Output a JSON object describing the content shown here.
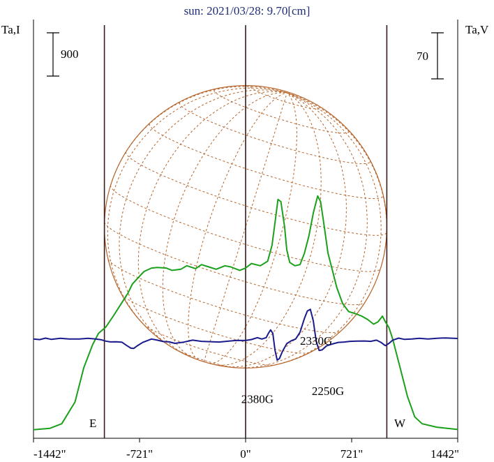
{
  "chart_data": {
    "type": "line",
    "title": "sun: 2021/03/28: 9.70[cm]",
    "left_axis_label": "Ta,I",
    "right_axis_label": "Ta,V",
    "left_scale_bar": "900",
    "right_scale_bar": "70",
    "x_ticks": [
      {
        "value": -1442,
        "label": "-1442\""
      },
      {
        "value": -721,
        "label": "-721\""
      },
      {
        "value": 0,
        "label": "0\""
      },
      {
        "value": 721,
        "label": "721\""
      },
      {
        "value": 1442,
        "label": "1442\""
      }
    ],
    "xlim": [
      -1442,
      1442
    ],
    "limb_lines": [
      -960,
      0,
      960
    ],
    "limb_labels": {
      "east": "E",
      "west": "W"
    },
    "annotations": [
      {
        "text": "2330G",
        "x": 480,
        "y": 0.78
      },
      {
        "text": "2380G",
        "x": 80,
        "y": 0.27
      },
      {
        "text": "2250G",
        "x": 560,
        "y": 0.34
      }
    ],
    "colors": {
      "intensity": "#1aa01a",
      "polarization": "#1a1a8c",
      "grid": "#b5642a",
      "limb": "#3a1a1a",
      "title": "#1f2c7a"
    },
    "series": [
      {
        "name": "Ta,I",
        "color": "#1aa01a",
        "points": [
          [
            -1442,
            0.008
          ],
          [
            -1330,
            0.02
          ],
          [
            -1250,
            0.06
          ],
          [
            -1160,
            0.25
          ],
          [
            -1100,
            0.55
          ],
          [
            -1040,
            0.75
          ],
          [
            -1000,
            0.85
          ],
          [
            -950,
            0.905
          ],
          [
            -900,
            1.0
          ],
          [
            -850,
            1.1
          ],
          [
            -800,
            1.2
          ],
          [
            -770,
            1.28
          ],
          [
            -720,
            1.35
          ],
          [
            -690,
            1.39
          ],
          [
            -640,
            1.42
          ],
          [
            -600,
            1.425
          ],
          [
            -540,
            1.42
          ],
          [
            -500,
            1.4
          ],
          [
            -440,
            1.41
          ],
          [
            -400,
            1.44
          ],
          [
            -340,
            1.415
          ],
          [
            -300,
            1.45
          ],
          [
            -250,
            1.43
          ],
          [
            -200,
            1.41
          ],
          [
            -140,
            1.44
          ],
          [
            -100,
            1.43
          ],
          [
            -40,
            1.4
          ],
          [
            0,
            1.42
          ],
          [
            40,
            1.46
          ],
          [
            100,
            1.44
          ],
          [
            150,
            1.48
          ],
          [
            180,
            1.62
          ],
          [
            200,
            1.82
          ],
          [
            220,
            2.02
          ],
          [
            240,
            2.0
          ],
          [
            265,
            1.78
          ],
          [
            280,
            1.58
          ],
          [
            300,
            1.47
          ],
          [
            335,
            1.44
          ],
          [
            370,
            1.45
          ],
          [
            400,
            1.55
          ],
          [
            430,
            1.7
          ],
          [
            460,
            1.9
          ],
          [
            490,
            2.05
          ],
          [
            510,
            2.0
          ],
          [
            535,
            1.78
          ],
          [
            560,
            1.55
          ],
          [
            590,
            1.4
          ],
          [
            620,
            1.25
          ],
          [
            660,
            1.11
          ],
          [
            700,
            1.04
          ],
          [
            750,
            1.02
          ],
          [
            790,
            1.0
          ],
          [
            830,
            0.97
          ],
          [
            870,
            0.93
          ],
          [
            900,
            0.95
          ],
          [
            930,
            1.0
          ],
          [
            950,
            0.95
          ],
          [
            975,
            0.9
          ],
          [
            1000,
            0.8
          ],
          [
            1050,
            0.55
          ],
          [
            1100,
            0.3
          ],
          [
            1150,
            0.12
          ],
          [
            1200,
            0.06
          ],
          [
            1300,
            0.03
          ],
          [
            1442,
            0.01
          ]
        ]
      },
      {
        "name": "Ta,V",
        "color": "#1a1a8c",
        "points": [
          [
            -1442,
            0.8
          ],
          [
            -1400,
            0.795
          ],
          [
            -1360,
            0.808
          ],
          [
            -1320,
            0.797
          ],
          [
            -1260,
            0.807
          ],
          [
            -1200,
            0.8
          ],
          [
            -1130,
            0.8
          ],
          [
            -1070,
            0.806
          ],
          [
            -1020,
            0.8
          ],
          [
            -980,
            0.793
          ],
          [
            -950,
            0.782
          ],
          [
            -920,
            0.775
          ],
          [
            -880,
            0.776
          ],
          [
            -840,
            0.772
          ],
          [
            -810,
            0.745
          ],
          [
            -780,
            0.72
          ],
          [
            -760,
            0.718
          ],
          [
            -740,
            0.738
          ],
          [
            -700,
            0.77
          ],
          [
            -640,
            0.8
          ],
          [
            -600,
            0.79
          ],
          [
            -560,
            0.778
          ],
          [
            -520,
            0.775
          ],
          [
            -480,
            0.762
          ],
          [
            -420,
            0.773
          ],
          [
            -360,
            0.79
          ],
          [
            -300,
            0.78
          ],
          [
            -240,
            0.777
          ],
          [
            -180,
            0.774
          ],
          [
            -120,
            0.781
          ],
          [
            -60,
            0.788
          ],
          [
            0,
            0.787
          ],
          [
            40,
            0.796
          ],
          [
            80,
            0.812
          ],
          [
            110,
            0.8
          ],
          [
            140,
            0.812
          ],
          [
            155,
            0.85
          ],
          [
            170,
            0.88
          ],
          [
            185,
            0.85
          ],
          [
            200,
            0.7
          ],
          [
            215,
            0.615
          ],
          [
            230,
            0.63
          ],
          [
            250,
            0.69
          ],
          [
            280,
            0.76
          ],
          [
            310,
            0.785
          ],
          [
            340,
            0.8
          ],
          [
            370,
            0.86
          ],
          [
            400,
            0.98
          ],
          [
            420,
            1.045
          ],
          [
            440,
            1.06
          ],
          [
            460,
            0.96
          ],
          [
            480,
            0.78
          ],
          [
            500,
            0.7
          ],
          [
            520,
            0.705
          ],
          [
            550,
            0.74
          ],
          [
            590,
            0.757
          ],
          [
            630,
            0.771
          ],
          [
            670,
            0.774
          ],
          [
            710,
            0.78
          ],
          [
            760,
            0.782
          ],
          [
            810,
            0.783
          ],
          [
            850,
            0.78
          ],
          [
            890,
            0.79
          ],
          [
            920,
            0.771
          ],
          [
            950,
            0.742
          ],
          [
            975,
            0.762
          ],
          [
            1000,
            0.79
          ],
          [
            1040,
            0.808
          ],
          [
            1080,
            0.797
          ],
          [
            1130,
            0.8
          ],
          [
            1180,
            0.807
          ],
          [
            1240,
            0.8
          ],
          [
            1300,
            0.807
          ],
          [
            1360,
            0.81
          ],
          [
            1442,
            0.805
          ]
        ]
      }
    ]
  }
}
